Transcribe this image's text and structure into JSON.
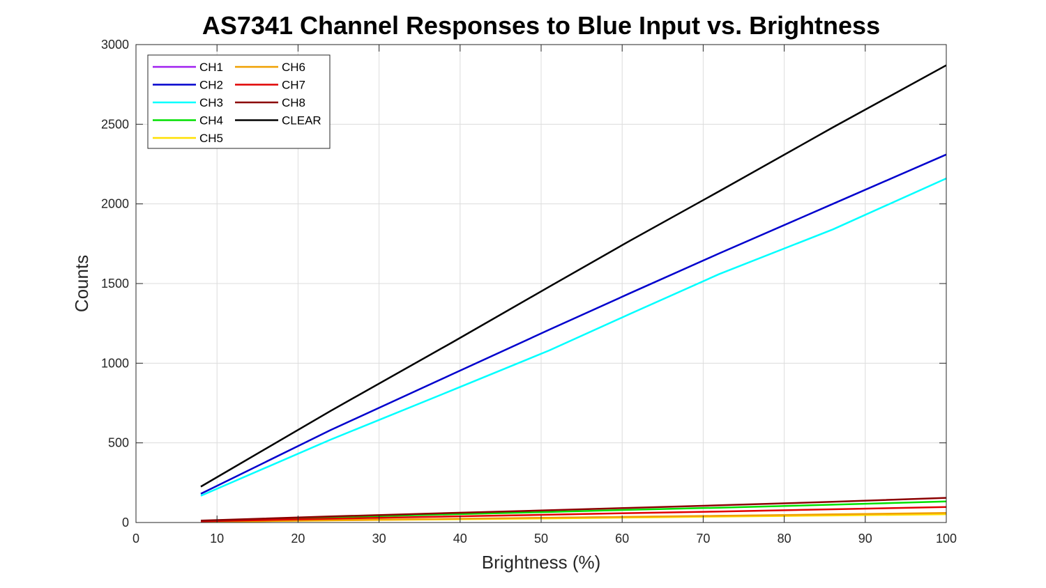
{
  "chart_data": {
    "type": "line",
    "title": "AS7341 Channel Responses to Blue Input vs. Brightness",
    "xlabel": "Brightness (%)",
    "ylabel": "Counts",
    "xlim": [
      0,
      100
    ],
    "ylim": [
      0,
      3000
    ],
    "xticks": [
      0,
      10,
      20,
      30,
      40,
      50,
      60,
      70,
      80,
      90,
      100
    ],
    "yticks": [
      0,
      500,
      1000,
      1500,
      2000,
      2500,
      3000
    ],
    "grid": true,
    "legend": {
      "placement": "top-left",
      "columns": 2
    },
    "series": [
      {
        "name": "CH1",
        "color": "#A020F0",
        "x": [
          8,
          24,
          39,
          51,
          61,
          72,
          86,
          100
        ],
        "y": [
          5,
          14,
          22,
          29,
          35,
          41,
          49,
          57
        ]
      },
      {
        "name": "CH2",
        "color": "#0000CD",
        "x": [
          8,
          24,
          39,
          51,
          61,
          72,
          86,
          100
        ],
        "y": [
          180,
          580,
          930,
          1210,
          1440,
          1690,
          2000,
          2310
        ]
      },
      {
        "name": "CH3",
        "color": "#00FFFF",
        "x": [
          8,
          24,
          39,
          51,
          61,
          72,
          86,
          100
        ],
        "y": [
          168,
          520,
          830,
          1080,
          1310,
          1560,
          1840,
          2160
        ]
      },
      {
        "name": "CH4",
        "color": "#00E000",
        "x": [
          8,
          24,
          39,
          51,
          61,
          72,
          86,
          100
        ],
        "y": [
          10,
          32,
          52,
          66,
          80,
          93,
          112,
          132
        ]
      },
      {
        "name": "CH5",
        "color": "#FFE000",
        "x": [
          8,
          24,
          39,
          51,
          61,
          72,
          86,
          100
        ],
        "y": [
          4,
          13,
          20,
          26,
          31,
          37,
          44,
          52
        ]
      },
      {
        "name": "CH6",
        "color": "#F0A000",
        "x": [
          8,
          24,
          39,
          51,
          61,
          72,
          86,
          100
        ],
        "y": [
          5,
          15,
          23,
          30,
          36,
          42,
          51,
          60
        ]
      },
      {
        "name": "CH7",
        "color": "#E00000",
        "x": [
          8,
          24,
          39,
          51,
          61,
          72,
          86,
          100
        ],
        "y": [
          8,
          24,
          38,
          49,
          59,
          69,
          83,
          97
        ]
      },
      {
        "name": "CH8",
        "color": "#8B0000",
        "x": [
          8,
          24,
          39,
          51,
          61,
          72,
          86,
          100
        ],
        "y": [
          12,
          38,
          60,
          77,
          92,
          108,
          130,
          155
        ]
      },
      {
        "name": "CLEAR",
        "color": "#000000",
        "x": [
          8,
          24,
          39,
          51,
          61,
          72,
          86,
          100
        ],
        "y": [
          225,
          700,
          1130,
          1480,
          1770,
          2080,
          2480,
          2870
        ]
      }
    ]
  }
}
